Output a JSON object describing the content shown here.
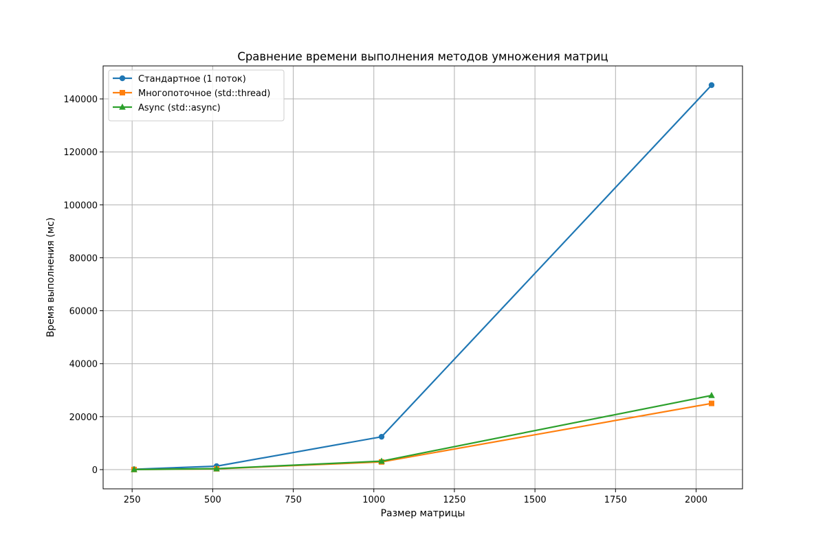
{
  "chart_data": {
    "type": "line",
    "title": "Сравнение времени выполнения методов умножения матриц",
    "xlabel": "Размер матрицы",
    "ylabel": "Время выполнения (мс)",
    "x": [
      256,
      512,
      1024,
      2048
    ],
    "series": [
      {
        "name": "Стандартное (1 поток)",
        "color": "#1f77b4",
        "marker": "circle",
        "values": [
          150,
          1300,
          12400,
          145200
        ]
      },
      {
        "name": "Многопоточное (std::thread)",
        "color": "#ff7f0e",
        "marker": "square",
        "values": [
          30,
          300,
          2900,
          25000
        ]
      },
      {
        "name": "Async (std::async)",
        "color": "#2ca02c",
        "marker": "triangle",
        "values": [
          30,
          350,
          3200,
          28000
        ]
      }
    ],
    "xlim": [
      160,
      2144
    ],
    "ylim": [
      -7260,
      152460
    ],
    "xticks": [
      250,
      500,
      750,
      1000,
      1250,
      1500,
      1750,
      2000
    ],
    "yticks": [
      0,
      20000,
      40000,
      60000,
      80000,
      100000,
      120000,
      140000
    ],
    "grid": true,
    "legend_position": "top-left"
  }
}
